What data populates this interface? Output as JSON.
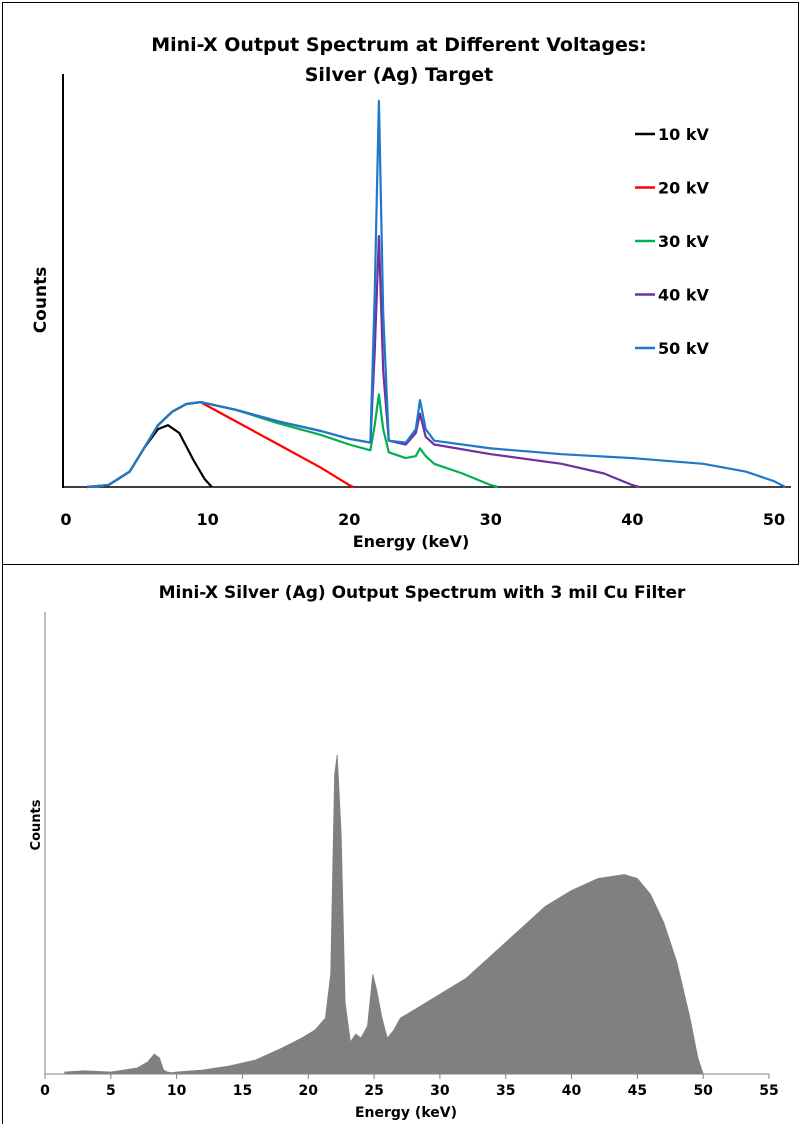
{
  "chart_data": [
    {
      "type": "line",
      "title_line1": "Mini-X Output Spectrum at Different Voltages:",
      "title_line2": "Silver (Ag) Target",
      "xlabel": "Energy (keV)",
      "ylabel": "Counts",
      "xlim": [
        0,
        52
      ],
      "ylim": [
        0,
        100
      ],
      "xticks": [
        "0",
        "10",
        "20",
        "30",
        "40",
        "50"
      ],
      "grid": false,
      "legend_position": "top-right",
      "series": [
        {
          "name": "10 kV",
          "color": "#000000",
          "x": [
            1.5,
            3,
            4.5,
            5.5,
            6.5,
            7.2,
            8,
            9,
            9.8,
            10.3
          ],
          "y": [
            0,
            0.5,
            4,
            10,
            15,
            16,
            14,
            7,
            2,
            0
          ]
        },
        {
          "name": "20 kV",
          "color": "#ff0000",
          "x": [
            1.5,
            3,
            4.5,
            5.5,
            6.5,
            7.5,
            8.5,
            9.5,
            12,
            15,
            18,
            20,
            20.3
          ],
          "y": [
            0,
            0.5,
            4,
            10,
            16,
            19.5,
            21.5,
            22,
            17,
            11,
            5,
            0.5,
            0
          ]
        },
        {
          "name": "30 kV",
          "color": "#00b050",
          "x": [
            1.5,
            3,
            4.5,
            5.5,
            6.5,
            7.5,
            8.5,
            9.5,
            12,
            15,
            18,
            20,
            21.5,
            21.8,
            22.1,
            22.4,
            22.8,
            24,
            24.7,
            25,
            25.4,
            26,
            28,
            30,
            30.5
          ],
          "y": [
            0,
            0.5,
            4,
            10,
            16,
            19.5,
            21.5,
            22,
            20,
            16.5,
            13.5,
            11,
            9.5,
            16,
            24,
            15,
            9,
            7.5,
            8,
            10,
            8,
            6,
            3.5,
            0.5,
            0
          ]
        },
        {
          "name": "40 kV",
          "color": "#7030a0",
          "x": [
            1.5,
            3,
            4.5,
            5.5,
            6.5,
            7.5,
            8.5,
            9.5,
            12,
            15,
            18,
            20,
            21.5,
            21.8,
            22.1,
            22.4,
            22.8,
            24,
            24.7,
            25,
            25.4,
            26,
            30,
            35,
            38,
            40,
            40.5
          ],
          "y": [
            0,
            0.5,
            4,
            10,
            16,
            19.5,
            21.5,
            22,
            20,
            17,
            14.5,
            12.5,
            11.5,
            35,
            65,
            30,
            12,
            11,
            14,
            19,
            13,
            11,
            8.5,
            6,
            3.5,
            0.5,
            0
          ]
        },
        {
          "name": "50 kV",
          "color": "#1f78c8",
          "x": [
            1.5,
            3,
            4.5,
            5.5,
            6.5,
            7.5,
            8.5,
            9.5,
            12,
            15,
            18,
            20,
            21.5,
            21.8,
            22.1,
            22.4,
            22.8,
            24,
            24.7,
            25,
            25.4,
            26,
            30,
            35,
            40,
            45,
            48,
            50,
            50.8
          ],
          "y": [
            0,
            0.5,
            4,
            10,
            16,
            19.5,
            21.5,
            22,
            20,
            17,
            14.5,
            12.5,
            11.5,
            50,
            100,
            45,
            12,
            11.5,
            15,
            22.5,
            15,
            12,
            10,
            8.5,
            7.5,
            6,
            4,
            1.5,
            0
          ]
        }
      ]
    },
    {
      "type": "area",
      "title": "Mini-X Silver (Ag) Output Spectrum with 3 mil Cu Filter",
      "xlabel": "Energy (keV)",
      "ylabel": "Counts",
      "xlim": [
        0,
        55
      ],
      "ylim": [
        0,
        100
      ],
      "xticks": [
        "0",
        "5",
        "10",
        "15",
        "20",
        "25",
        "30",
        "35",
        "40",
        "45",
        "50",
        "55"
      ],
      "grid": false,
      "fill_color": "#808080",
      "series": [
        {
          "name": "",
          "x": [
            1.5,
            3,
            5,
            7,
            7.8,
            8.3,
            8.7,
            9.0,
            9.3,
            9.6,
            10,
            12,
            14,
            16,
            18,
            19.5,
            20.5,
            21.3,
            21.7,
            22.0,
            22.2,
            22.5,
            22.8,
            23.2,
            23.6,
            24.0,
            24.5,
            24.9,
            25.2,
            25.6,
            26.0,
            26.5,
            27.0,
            28,
            30,
            32,
            34,
            36,
            38,
            40,
            42,
            44,
            45,
            46,
            47,
            48,
            49,
            49.6,
            50
          ],
          "y": [
            0.5,
            0.8,
            0.5,
            1.5,
            3,
            5,
            4,
            1,
            0.5,
            0.3,
            0.5,
            1,
            2,
            3.5,
            6.5,
            9,
            11,
            14,
            25,
            75,
            80,
            60,
            18,
            8,
            10,
            9,
            12,
            25,
            21,
            14,
            9,
            11,
            14,
            16,
            20,
            24,
            30,
            36,
            42,
            46,
            49,
            50,
            49,
            45,
            38,
            28,
            14,
            4,
            0
          ]
        }
      ]
    }
  ]
}
